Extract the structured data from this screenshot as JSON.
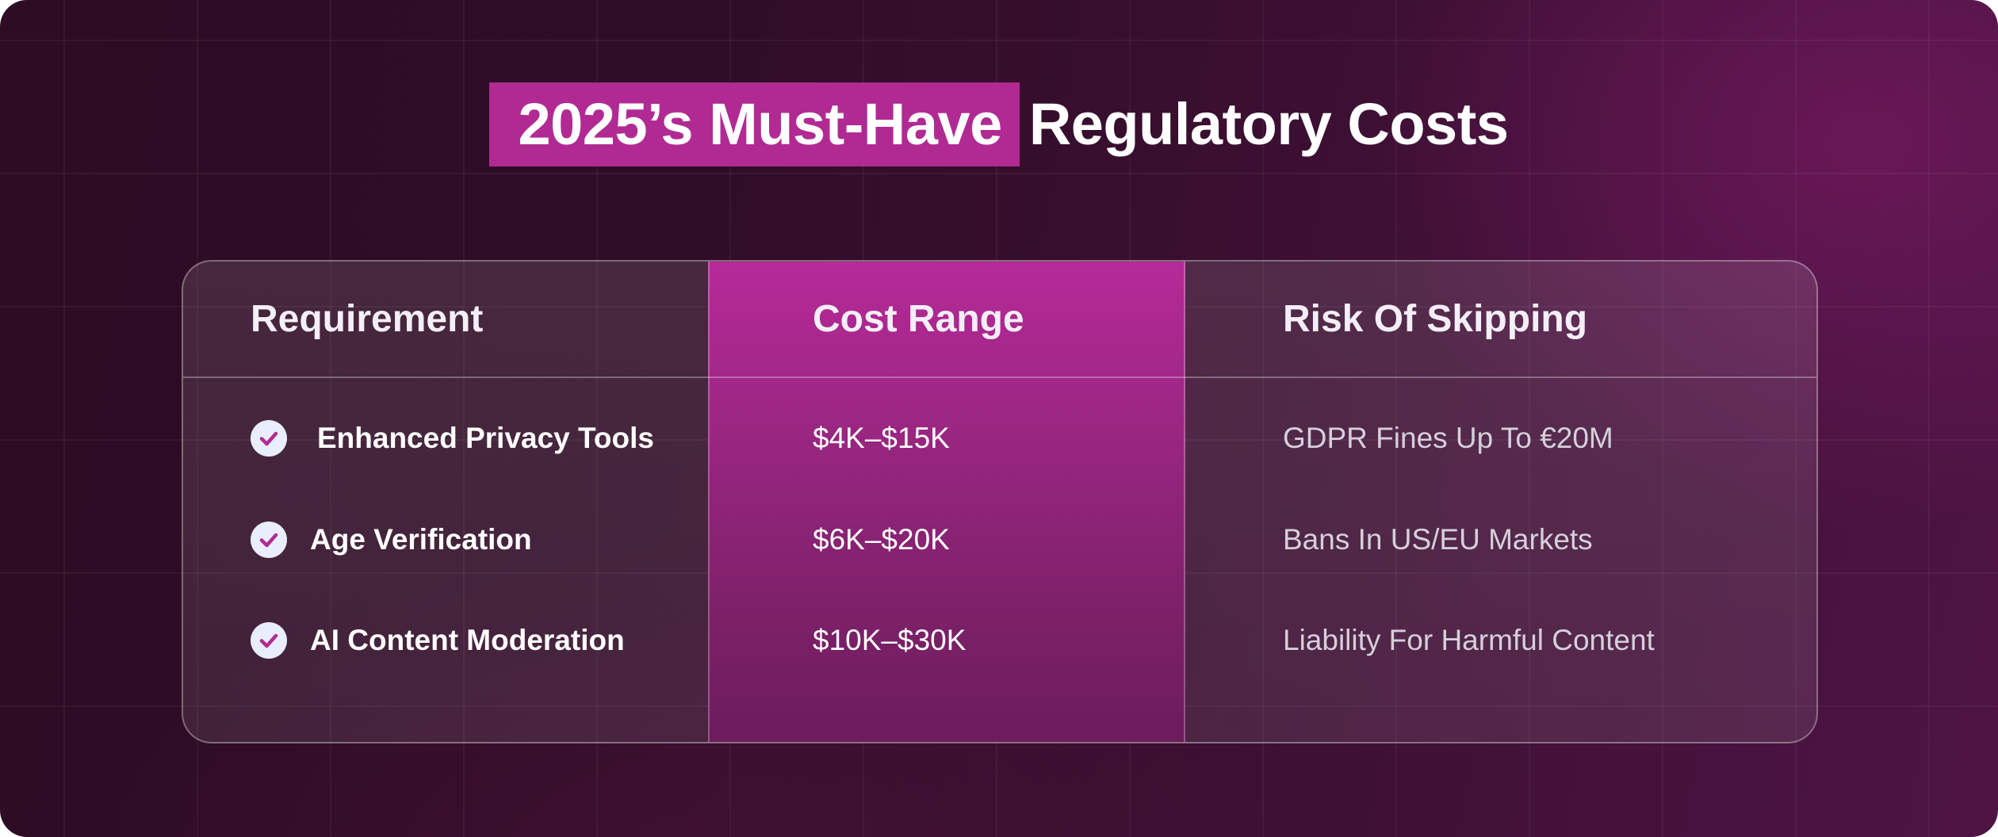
{
  "title": {
    "highlight": "2025’s Must-Have",
    "rest": "Regulatory Costs"
  },
  "table": {
    "headers": {
      "requirement": "Requirement",
      "cost": "Cost Range",
      "risk": "Risk Of Skipping"
    },
    "rows": [
      {
        "requirement": "Enhanced Privacy Tools",
        "cost": "$4K–$15K",
        "risk": "GDPR Fines Up To €20M"
      },
      {
        "requirement": "Age Verification",
        "cost": "$6K–$20K",
        "risk": "Bans In US/EU Markets"
      },
      {
        "requirement": "AI Content Moderation",
        "cost": "$10K–$30K",
        "risk": "Liability For Harmful Content"
      }
    ]
  },
  "icons": {
    "row_marker": "check-circle-icon"
  },
  "colors": {
    "accent": "#b12a93",
    "check_mark": "#b12a93",
    "check_bg": "#e9eefe"
  }
}
